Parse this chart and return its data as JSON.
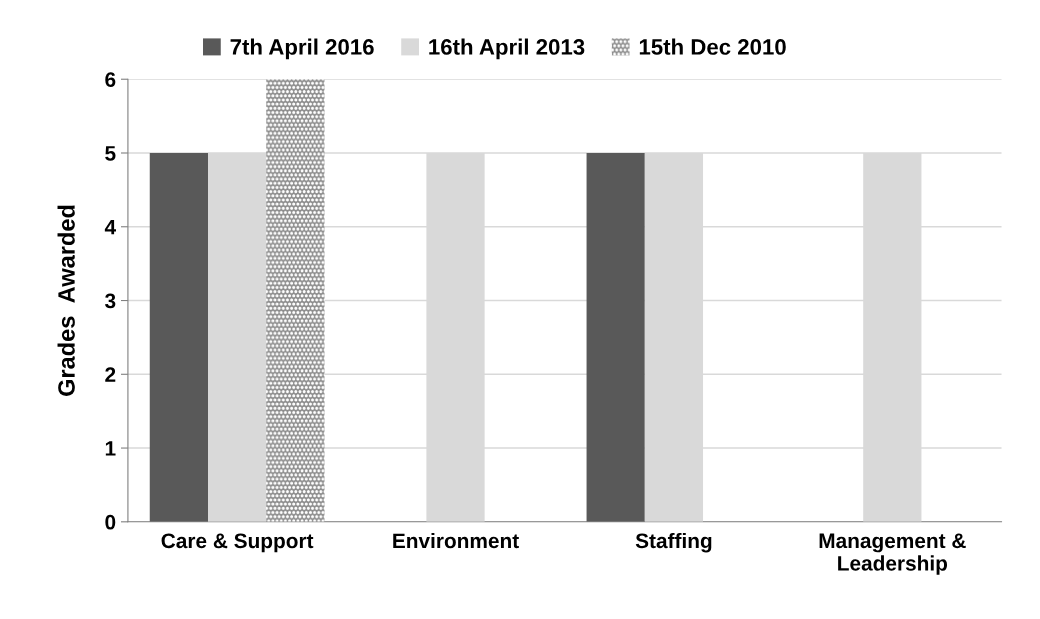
{
  "chart_data": {
    "type": "bar",
    "ylabel": "Grades  Awarded",
    "categories": [
      "Care & Support",
      "Environment",
      "Staffing",
      "Management &\nLeadership"
    ],
    "series": [
      {
        "name": "7th April 2016",
        "color": "#595959",
        "values": [
          5,
          null,
          5,
          null
        ]
      },
      {
        "name": "16th April 2013",
        "color": "#d9d9d9",
        "values": [
          5,
          5,
          5,
          5
        ]
      },
      {
        "name": "15th Dec 2010",
        "color": "#8c8c8c",
        "values": [
          6,
          null,
          null,
          null
        ]
      }
    ],
    "ylim": [
      0,
      6
    ],
    "yticks": [
      0,
      1,
      2,
      3,
      4,
      5,
      6
    ],
    "grid": "y",
    "legend": "top"
  }
}
